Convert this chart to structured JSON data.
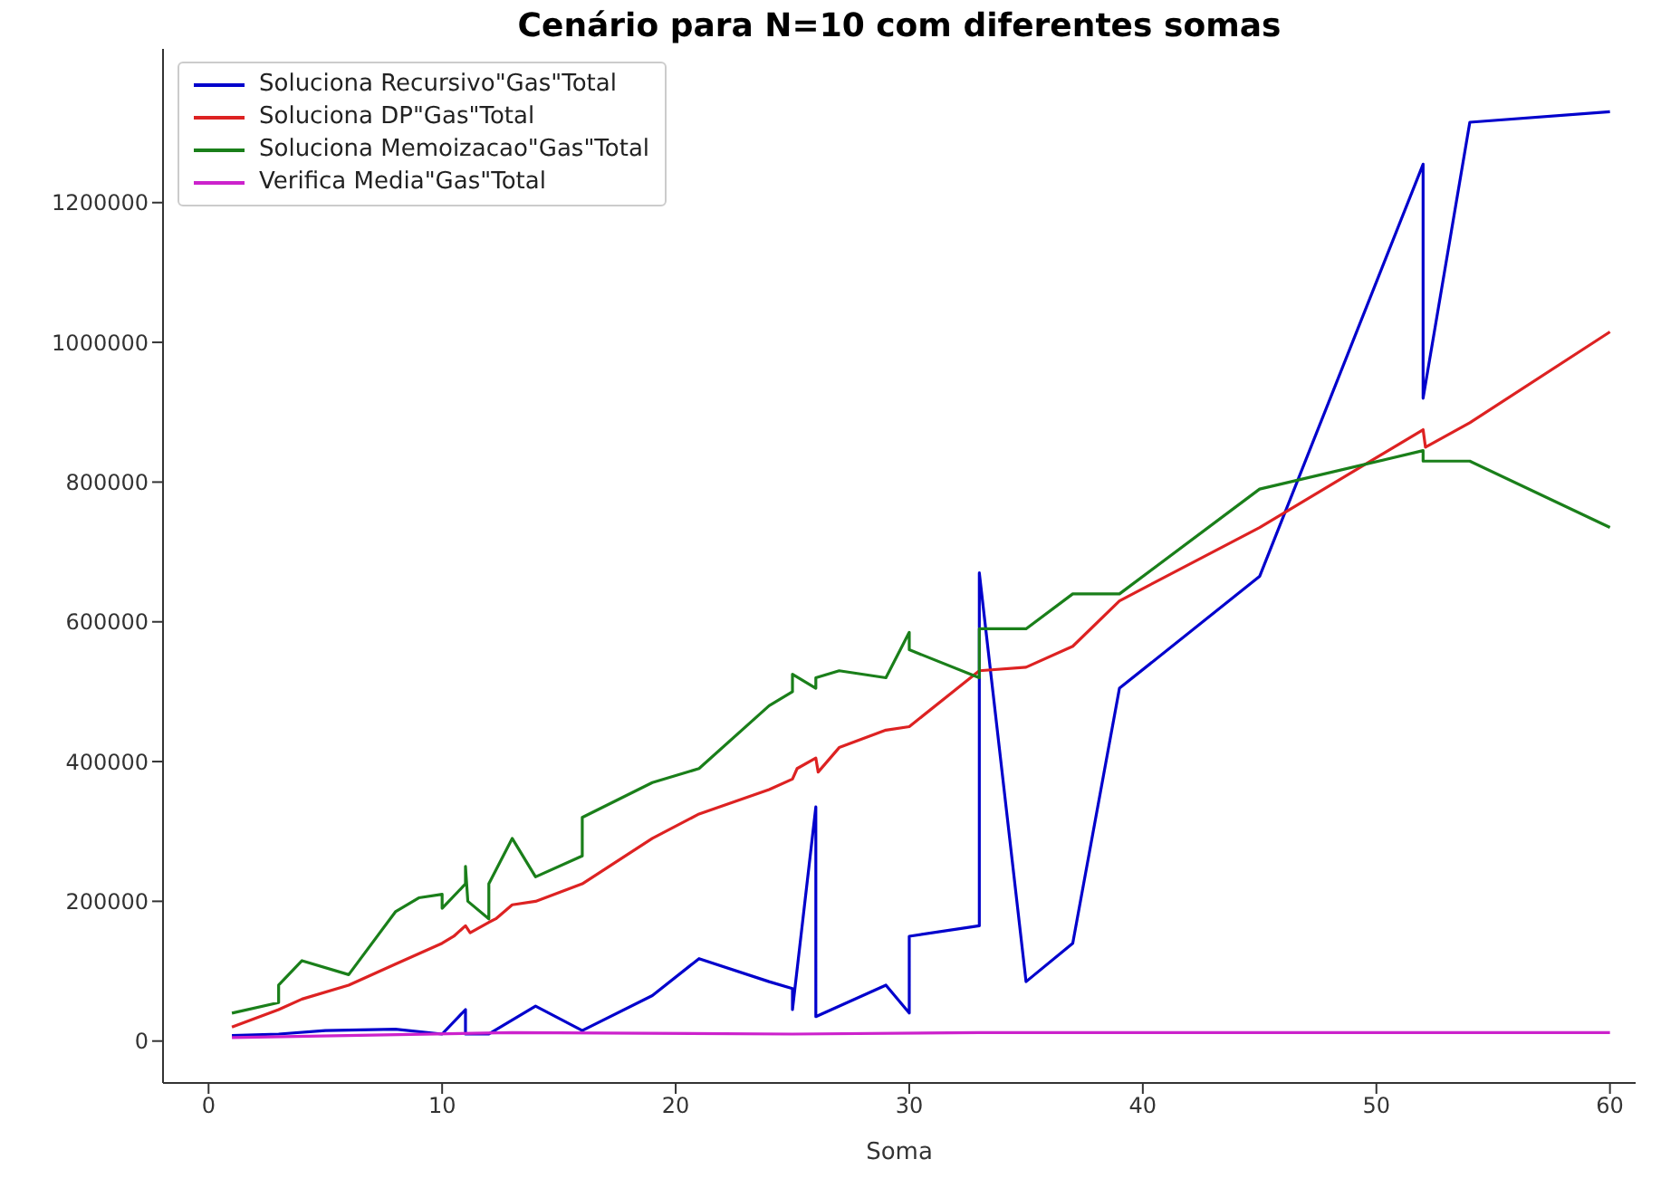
{
  "chart_data": {
    "type": "line",
    "title": "Cenário para N=10 com diferentes somas",
    "xlabel": "Soma",
    "xlim": [
      -1.95,
      61.1
    ],
    "xticks": [
      0,
      10,
      20,
      30,
      40,
      50,
      60
    ],
    "ylim": [
      -60000,
      1420000
    ],
    "yticks": [
      0,
      200000,
      400000,
      600000,
      800000,
      1000000,
      1200000
    ],
    "legend": "top left",
    "marker": "none",
    "line_style": "solid",
    "series": [
      {
        "name": "Soluciona Recursivo\"Gas\"Total",
        "color": "#0000cc",
        "x": [
          1,
          3,
          5,
          8,
          10,
          11,
          11,
          12,
          14,
          16,
          19,
          21,
          24,
          25,
          25,
          26,
          26,
          29,
          30,
          30,
          33,
          33,
          35,
          37,
          39,
          45,
          52,
          52,
          54,
          60
        ],
        "values": [
          8000,
          10000,
          15000,
          17000,
          10000,
          45000,
          10000,
          10000,
          50000,
          15000,
          65000,
          118000,
          85000,
          75000,
          45000,
          335000,
          35000,
          80000,
          40000,
          150000,
          165000,
          670000,
          85000,
          140000,
          505000,
          665000,
          1255000,
          920000,
          1315000,
          1330000
        ]
      },
      {
        "name": "Soluciona DP\"Gas\"Total",
        "color": "#dd2222",
        "x": [
          1,
          3,
          4,
          6,
          8,
          10,
          10.5,
          11,
          11.2,
          12,
          12.3,
          13,
          14,
          16,
          19,
          21,
          24,
          25,
          25.2,
          26,
          26.1,
          27,
          29,
          30,
          33,
          35,
          37,
          39,
          45,
          52,
          52.1,
          54,
          60
        ],
        "values": [
          20000,
          45000,
          60000,
          80000,
          110000,
          140000,
          150000,
          165000,
          155000,
          170000,
          175000,
          195000,
          200000,
          225000,
          290000,
          325000,
          360000,
          375000,
          390000,
          405000,
          385000,
          420000,
          445000,
          450000,
          530000,
          535000,
          565000,
          630000,
          735000,
          875000,
          850000,
          885000,
          1015000
        ]
      },
      {
        "name": "Soluciona Memoizacao\"Gas\"Total",
        "color": "#1a7f1a",
        "x": [
          1,
          3,
          3,
          4,
          6,
          8,
          9,
          10,
          10,
          11,
          11,
          11.1,
          12,
          12,
          13,
          14,
          16,
          16,
          19,
          21,
          24,
          25,
          25,
          26,
          26,
          27,
          29,
          30,
          30,
          33,
          33,
          35,
          37,
          39,
          45,
          52,
          52,
          54,
          60
        ],
        "values": [
          40000,
          55000,
          80000,
          115000,
          95000,
          185000,
          205000,
          210000,
          190000,
          225000,
          250000,
          200000,
          175000,
          225000,
          290000,
          235000,
          265000,
          320000,
          370000,
          390000,
          480000,
          500000,
          525000,
          505000,
          520000,
          530000,
          520000,
          585000,
          560000,
          520000,
          590000,
          590000,
          640000,
          640000,
          790000,
          845000,
          830000,
          830000,
          735000
        ]
      },
      {
        "name": "Verifica Media\"Gas\"Total",
        "color": "#cc22cc",
        "x": [
          1,
          13,
          25,
          33,
          60
        ],
        "values": [
          5000,
          12000,
          10000,
          12000,
          12000
        ]
      }
    ]
  }
}
